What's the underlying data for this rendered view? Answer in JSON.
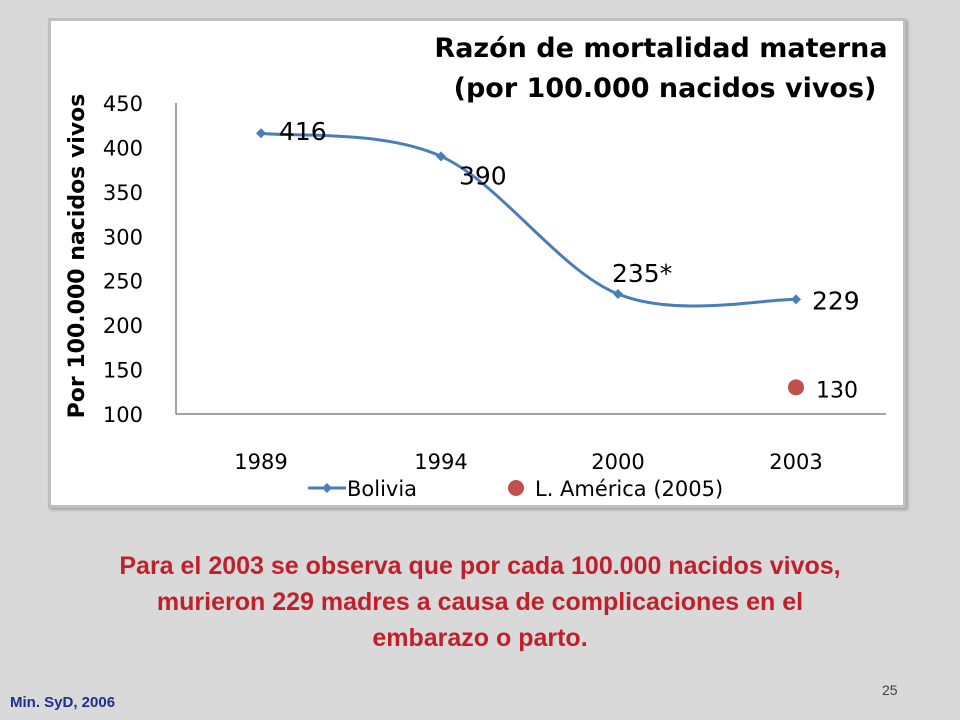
{
  "chart_data": {
    "type": "line",
    "title_lines": [
      "Razón de mortalidad materna",
      "(por 100.000 nacidos vivos)"
    ],
    "ylabel": "Por 100.000 nacidos vivos",
    "xlabel": "",
    "categories": [
      "1989",
      "1994",
      "2000",
      "2003"
    ],
    "ylim": [
      100,
      450
    ],
    "yticks": [
      100,
      150,
      200,
      250,
      300,
      350,
      400,
      450
    ],
    "series": [
      {
        "name": "Bolivia",
        "values": [
          416,
          390,
          235,
          229
        ],
        "labels": [
          "416",
          "390",
          "235*",
          "229"
        ],
        "color": "#4a7ebb",
        "marker": "diamond",
        "smooth": true
      },
      {
        "name": "L. América (2005)",
        "points": [
          {
            "x": "2003",
            "y": 130
          }
        ],
        "labels": [
          "130"
        ],
        "color": "#c0504d",
        "marker": "circle"
      }
    ],
    "legend_position": "bottom",
    "grid": false
  },
  "caption_lines": [
    "Para el 2003 se observa que por cada 100.000 nacidos vivos,",
    "murieron 229 madres a causa de complicaciones en el",
    "embarazo o parto."
  ],
  "source": "Min. SyD, 2006",
  "page_number": "25",
  "colors": {
    "background": "#d9d9d9",
    "caption": "#c0202a",
    "source": "#1f2f8f"
  }
}
